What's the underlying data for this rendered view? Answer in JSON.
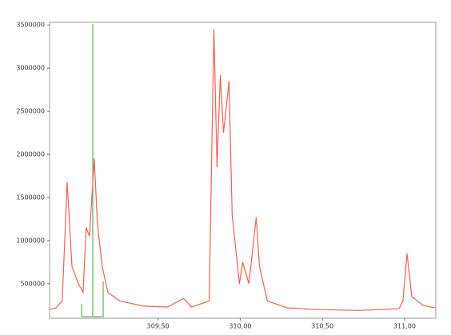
{
  "chart_data": {
    "type": "line",
    "color": "#f0604f",
    "x": [
      308.84,
      308.879,
      308.917,
      308.947,
      308.976,
      309.015,
      309.044,
      309.063,
      309.083,
      309.112,
      309.131,
      309.16,
      309.194,
      309.267,
      309.413,
      309.558,
      309.655,
      309.704,
      309.811,
      309.84,
      309.859,
      309.879,
      309.898,
      309.932,
      309.951,
      309.995,
      310.015,
      310.053,
      310.097,
      310.117,
      310.165,
      310.286,
      310.481,
      310.723,
      310.966,
      310.99,
      311.015,
      311.044,
      311.112,
      311.184
    ],
    "values": [
      200000,
      220000,
      300000,
      1680000,
      700000,
      500000,
      400000,
      1150000,
      1050000,
      1950000,
      1200000,
      700000,
      400000,
      300000,
      240000,
      230000,
      330000,
      230000,
      300000,
      3450000,
      1850000,
      2920000,
      2250000,
      2850000,
      1300000,
      500000,
      750000,
      500000,
      1270000,
      700000,
      300000,
      220000,
      200000,
      190000,
      210000,
      300000,
      850000,
      350000,
      250000,
      220000
    ],
    "xlim": [
      308.84,
      311.19
    ],
    "ylim": [
      100000,
      3530000
    ],
    "xticks": [
      {
        "value": 309.5,
        "label": "309,50"
      },
      {
        "value": 310,
        "label": "310,00"
      },
      {
        "value": 310.5,
        "label": "310,50"
      },
      {
        "value": 311,
        "label": "311,00"
      }
    ],
    "yticks": [
      500000,
      1000000,
      1500000,
      2000000,
      2500000,
      3000000,
      3500000
    ]
  }
}
